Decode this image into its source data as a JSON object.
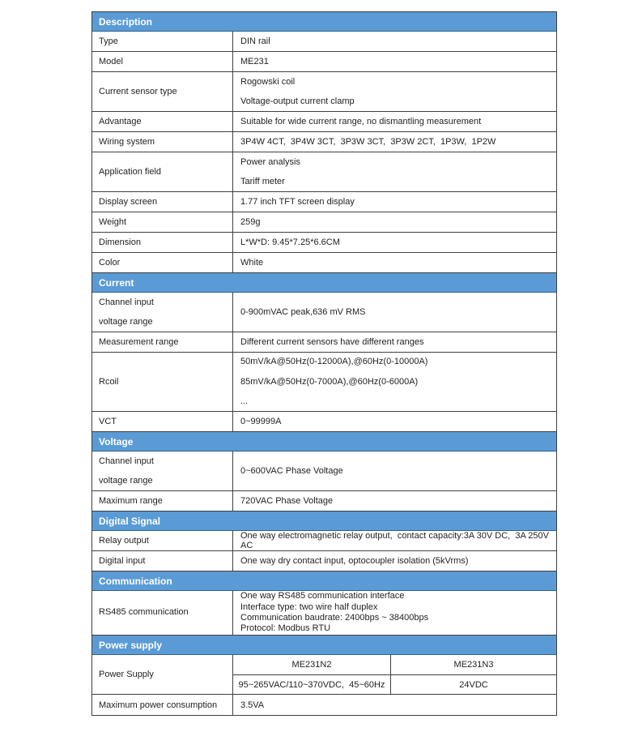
{
  "document": {
    "title": "ME231 energy meter specification sheet",
    "colors": {
      "section_header_bg": "#5b9bd5",
      "section_header_text": "#ffffff",
      "border": "#3f3f3f",
      "body_text": "#1f1f1f",
      "page_bg": "#ffffff"
    }
  },
  "table": {
    "sections": [
      {
        "title": "Description",
        "rows": [
          {
            "label": [
              "Type"
            ],
            "value": [
              "DIN rail"
            ]
          },
          {
            "label": [
              "Model"
            ],
            "value": [
              "ME231"
            ]
          },
          {
            "label": [
              "Current sensor type"
            ],
            "value": [
              "Rogowski coil",
              "Voltage-output current clamp"
            ]
          },
          {
            "label": [
              "Advantage"
            ],
            "value": [
              "Suitable for wide current range, no dismantling measurement"
            ]
          },
          {
            "label": [
              "Wiring system"
            ],
            "value": [
              "3P4W 4CT,  3P4W 3CT,  3P3W 3CT,  3P3W 2CT,  1P3W,  1P2W"
            ]
          },
          {
            "label": [
              "Application field"
            ],
            "value": [
              "Power analysis",
              "Tariff meter"
            ]
          },
          {
            "label": [
              "Display screen"
            ],
            "value": [
              "1.77 inch TFT screen display"
            ]
          },
          {
            "label": [
              "Weight"
            ],
            "value": [
              "259g"
            ]
          },
          {
            "label": [
              "Dimension"
            ],
            "value": [
              "L*W*D: 9.45*7.25*6.6CM"
            ]
          },
          {
            "label": [
              "Color"
            ],
            "value": [
              "White"
            ]
          }
        ]
      },
      {
        "title": "Current",
        "rows": [
          {
            "label": [
              "Channel input",
              "voltage range"
            ],
            "value": [
              "0-900mVAC peak,636 mV RMS"
            ]
          },
          {
            "label": [
              "Measurement range"
            ],
            "value": [
              "Different current sensors have different ranges"
            ]
          },
          {
            "label": [
              "Rcoil"
            ],
            "value": [
              "50mV/kA@50Hz(0-12000A),@60Hz(0-10000A)",
              "85mV/kA@50Hz(0-7000A),@60Hz(0-6000A)",
              "..."
            ]
          },
          {
            "label": [
              "VCT"
            ],
            "value": [
              "0~99999A"
            ]
          }
        ]
      },
      {
        "title": "Voltage",
        "rows": [
          {
            "label": [
              "Channel input",
              "voltage range"
            ],
            "value": [
              "0~600VAC Phase Voltage"
            ]
          },
          {
            "label": [
              "Maximum range"
            ],
            "value": [
              "720VAC Phase Voltage"
            ]
          }
        ]
      },
      {
        "title": "Digital Signal",
        "rows": [
          {
            "label": [
              "Relay output"
            ],
            "value": [
              "One way electromagnetic relay output,  contact capacity:3A 30V DC,  3A 250V AC"
            ]
          },
          {
            "label": [
              "Digital input"
            ],
            "value": [
              "One way dry contact input, optocoupler isolation (5kVrms)"
            ]
          }
        ]
      },
      {
        "title": "Communication",
        "rows": [
          {
            "label": [
              "RS485 communication"
            ],
            "tight": true,
            "value": [
              "One way RS485 communication interface",
              "Interface type: two wire half duplex",
              "Communication baudrate: 2400bps ~ 38400bps",
              "Protocol: Modbus RTU"
            ]
          }
        ]
      },
      {
        "title": "Power supply",
        "rows": [
          {
            "label": [
              "Power Supply"
            ],
            "variants": {
              "models": [
                "ME231N2",
                "ME231N3"
              ],
              "values": [
                "95~265VAC/110~370VDC,  45~60Hz",
                "24VDC"
              ]
            }
          },
          {
            "label": [
              "Maximum power consumption"
            ],
            "value": [
              "3.5VA"
            ]
          }
        ]
      }
    ]
  }
}
